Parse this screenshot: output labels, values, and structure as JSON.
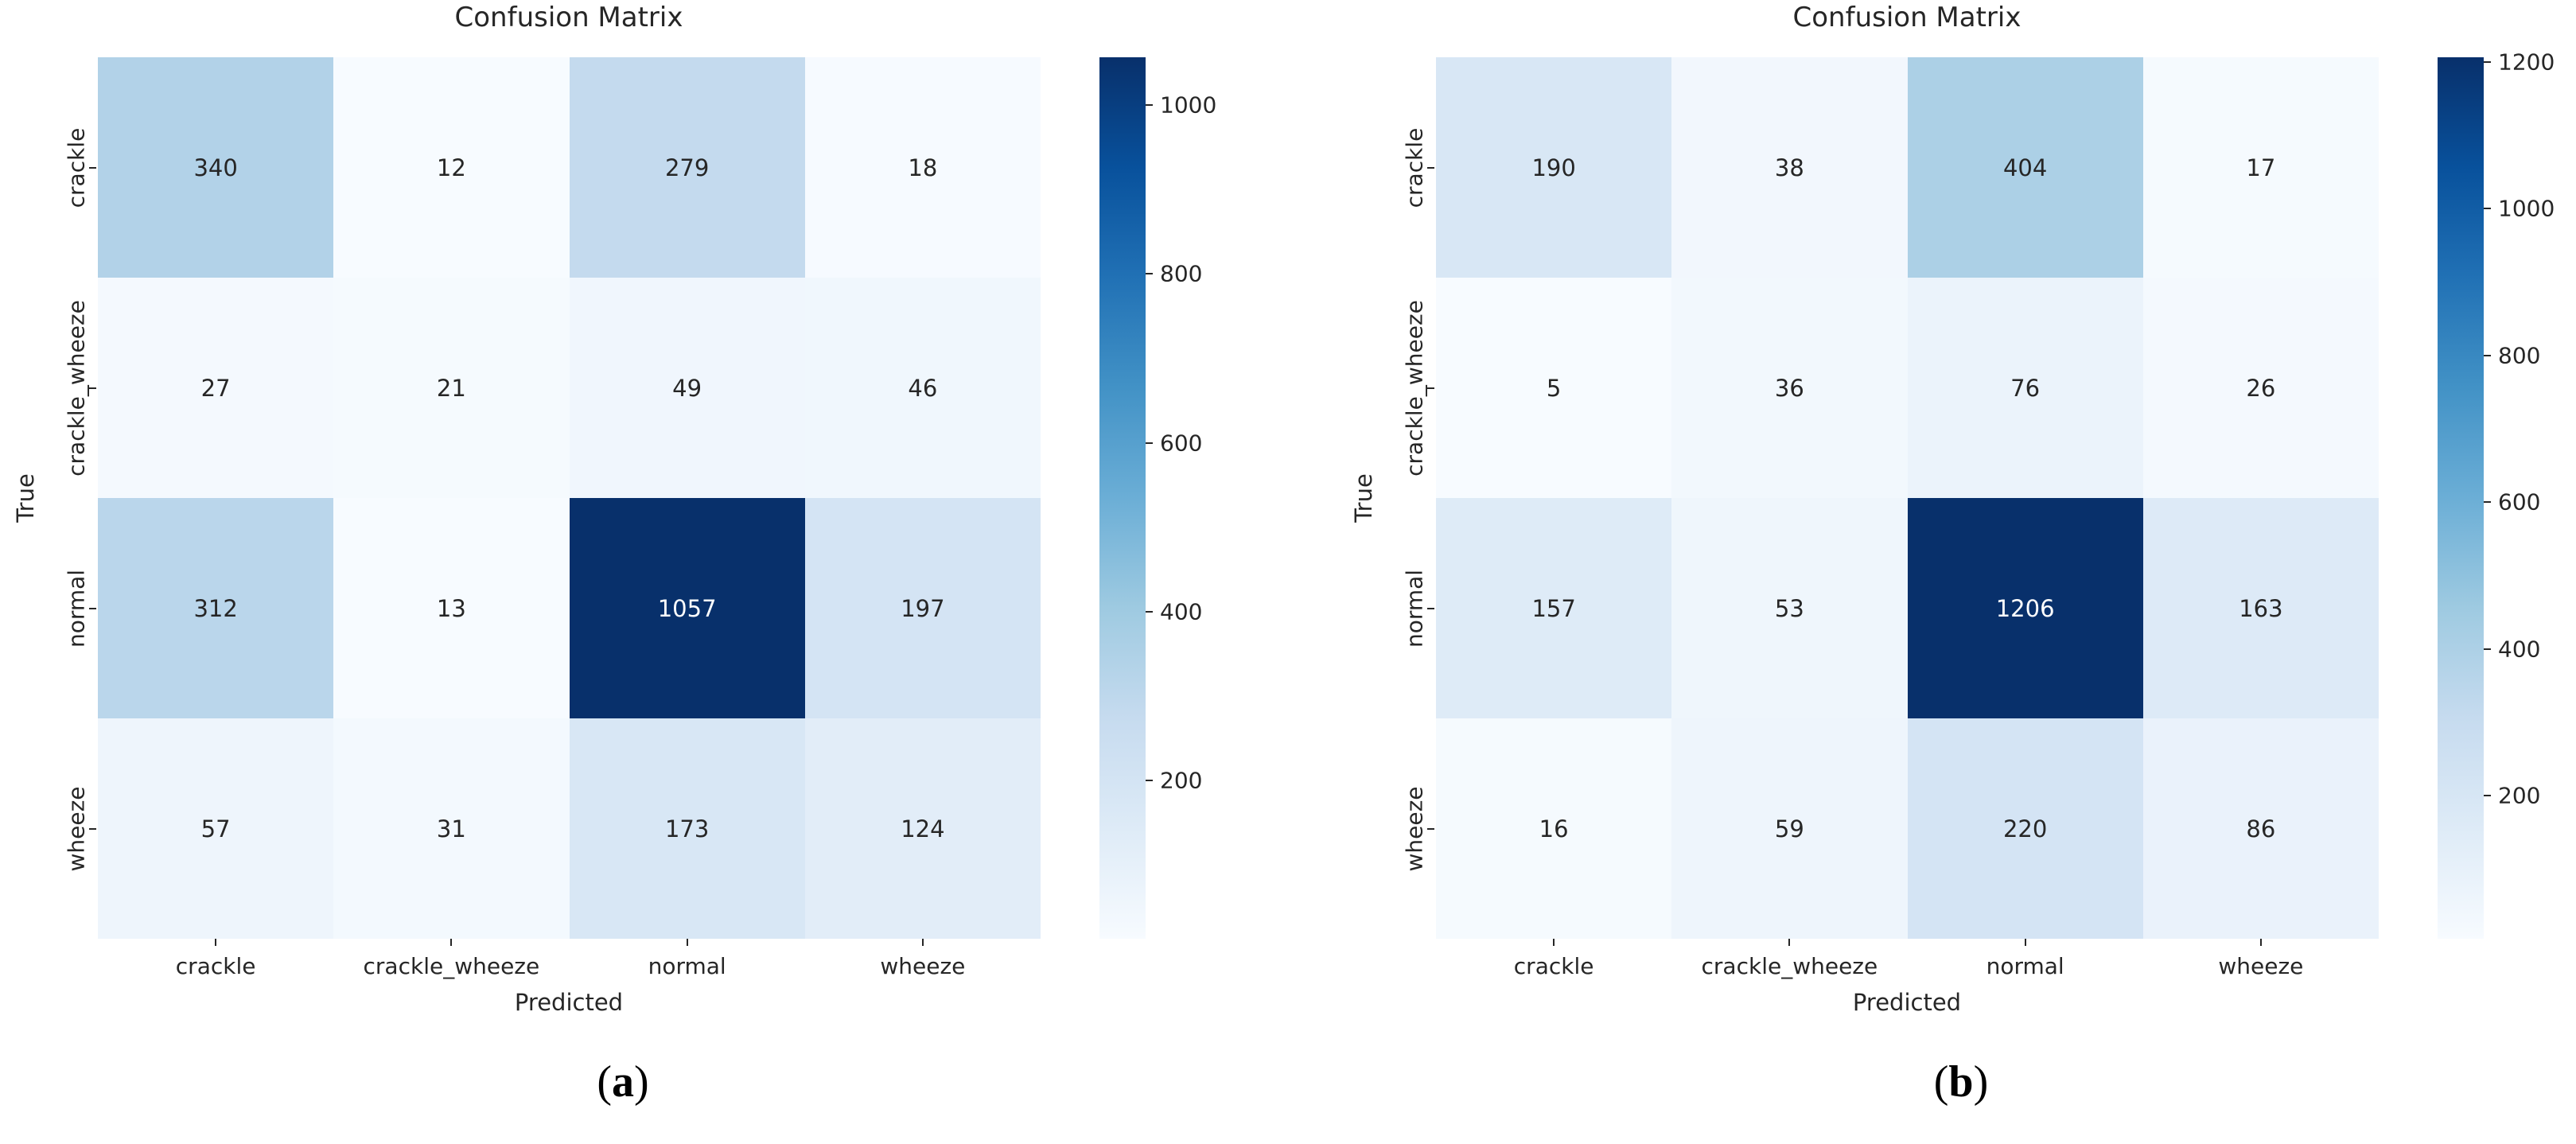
{
  "colormap": {
    "name": "Blues",
    "stops": [
      "#f7fbff",
      "#deebf7",
      "#c6dbef",
      "#9ecae1",
      "#6baed6",
      "#4292c6",
      "#2171b5",
      "#08519c",
      "#08306b"
    ]
  },
  "text_colors": {
    "annotation_dark": "#262626",
    "annotation_light": "#ffffff",
    "axis_text": "#262626"
  },
  "chart_data": [
    {
      "type": "heatmap",
      "title": "Confusion Matrix",
      "xlabel": "Predicted",
      "ylabel": "True",
      "x_categories": [
        "crackle",
        "crackle_wheeze",
        "normal",
        "wheeze"
      ],
      "y_categories": [
        "crackle",
        "crackle_wheeze",
        "normal",
        "wheeze"
      ],
      "matrix": [
        [
          340,
          12,
          279,
          18
        ],
        [
          27,
          21,
          49,
          46
        ],
        [
          312,
          13,
          1057,
          197
        ],
        [
          57,
          31,
          173,
          124
        ]
      ],
      "vmin": 12,
      "vmax": 1057,
      "colorbar_ticks": [
        200,
        400,
        600,
        800,
        1000
      ],
      "legend_position": "right",
      "grid": false,
      "caption": {
        "open_paren": "(",
        "letter": "a",
        "close_paren": ")"
      }
    },
    {
      "type": "heatmap",
      "title": "Confusion Matrix",
      "xlabel": "Predicted",
      "ylabel": "True",
      "x_categories": [
        "crackle",
        "crackle_wheeze",
        "normal",
        "wheeze"
      ],
      "y_categories": [
        "crackle",
        "crackle_wheeze",
        "normal",
        "wheeze"
      ],
      "matrix": [
        [
          190,
          38,
          404,
          17
        ],
        [
          5,
          36,
          76,
          26
        ],
        [
          157,
          53,
          1206,
          163
        ],
        [
          16,
          59,
          220,
          86
        ]
      ],
      "vmin": 5,
      "vmax": 1206,
      "colorbar_ticks": [
        200,
        400,
        600,
        800,
        1000,
        1200
      ],
      "legend_position": "right",
      "grid": false,
      "caption": {
        "open_paren": "(",
        "letter": "b",
        "close_paren": ")"
      }
    }
  ]
}
